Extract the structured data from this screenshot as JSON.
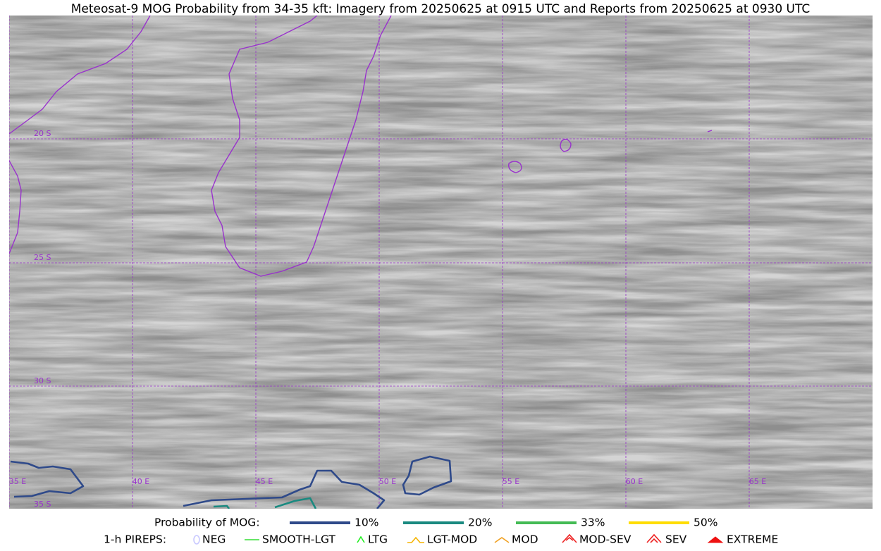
{
  "title": "Meteosat-9 MOG Probability from 34-35 kft: Imagery from 20250625 at 0915 UTC and Reports from 20250625 at 0930 UTC",
  "map": {
    "lat_labels": [
      "20 S",
      "25 S",
      "30 S",
      "35 S"
    ],
    "lon_labels": [
      "35 E",
      "40 E",
      "45 E",
      "50 E",
      "55 E",
      "60 E",
      "65 E"
    ],
    "grid_color": "#9933cc"
  },
  "legend": {
    "probability": {
      "label": "Probability of MOG:",
      "items": [
        {
          "label": "10%",
          "color": "#2f4a8a"
        },
        {
          "label": "20%",
          "color": "#1a8a80"
        },
        {
          "label": "33%",
          "color": "#44bb55"
        },
        {
          "label": "50%",
          "color": "#ffdd00"
        }
      ]
    },
    "pireps": {
      "label": "1-h PIREPS:",
      "items": [
        {
          "label": "NEG",
          "color": "#c8c8ff"
        },
        {
          "label": "SMOOTH-LGT",
          "color": "#33dd33"
        },
        {
          "label": "LTG",
          "color": "#22ee22"
        },
        {
          "label": "LGT-MOD",
          "color": "#f5b400"
        },
        {
          "label": "MOD",
          "color": "#f0a020"
        },
        {
          "label": "MOD-SEV",
          "color": "#ee2222"
        },
        {
          "label": "SEV",
          "color": "#ee2222"
        },
        {
          "label": "EXTREME",
          "color": "#ee1111"
        }
      ]
    }
  }
}
